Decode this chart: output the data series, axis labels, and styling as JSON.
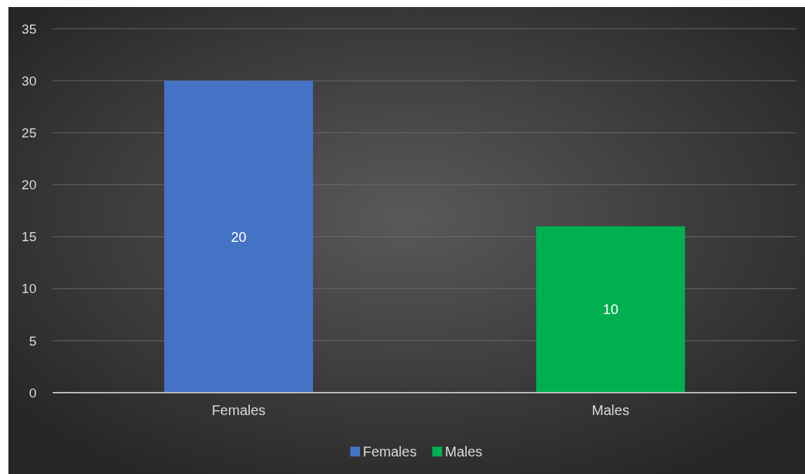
{
  "chart_data": {
    "type": "bar",
    "categories": [
      "Females",
      "Males"
    ],
    "series": [
      {
        "name": "Females",
        "color": "#4472c4",
        "values": [
          30,
          null
        ]
      },
      {
        "name": "Males",
        "color": "#00b050",
        "values": [
          null,
          16
        ]
      }
    ],
    "annotations": [
      "20",
      "10"
    ],
    "ylim": [
      0,
      35
    ],
    "yticks": [
      0,
      5,
      10,
      15,
      20,
      25,
      30,
      35
    ],
    "grid": "y",
    "legend": "bottom"
  }
}
